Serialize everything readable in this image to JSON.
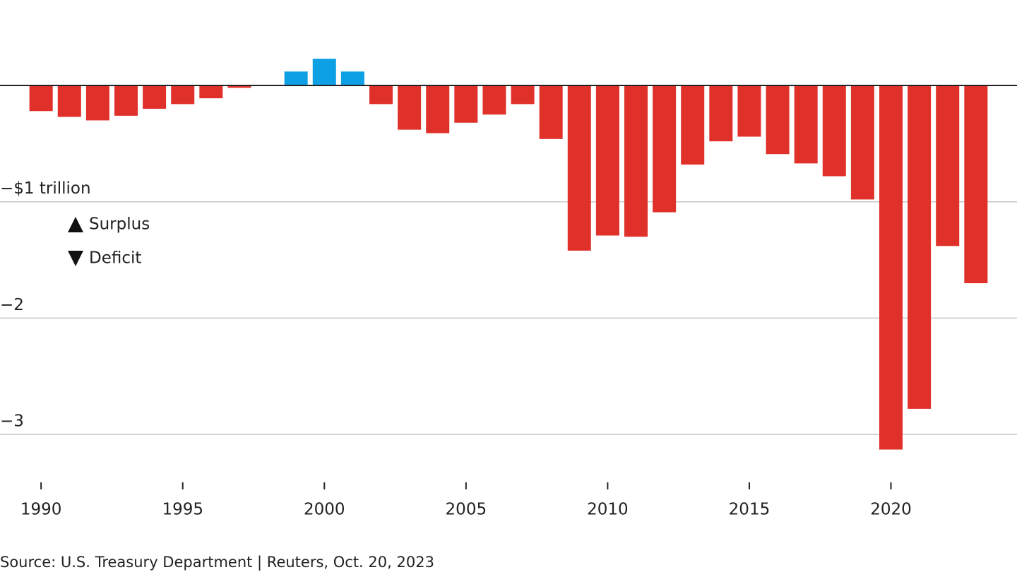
{
  "chart_data": {
    "type": "bar",
    "source": "Source: U.S. Treasury Department | Reuters, Oct. 20, 2023",
    "x": [
      1990,
      1991,
      1992,
      1993,
      1994,
      1995,
      1996,
      1997,
      1998,
      1999,
      2000,
      2001,
      2002,
      2003,
      2004,
      2005,
      2006,
      2007,
      2008,
      2009,
      2010,
      2011,
      2012,
      2013,
      2014,
      2015,
      2016,
      2017,
      2018,
      2019,
      2020,
      2021,
      2022,
      2023
    ],
    "values": [
      -0.22,
      -0.27,
      -0.3,
      -0.26,
      -0.2,
      -0.16,
      -0.11,
      -0.02,
      0,
      0.12,
      0.23,
      0.12,
      -0.16,
      -0.38,
      -0.41,
      -0.32,
      -0.25,
      -0.16,
      -0.46,
      -1.42,
      -1.29,
      -1.3,
      -1.09,
      -0.68,
      -0.48,
      -0.44,
      -0.59,
      -0.67,
      -0.78,
      -0.98,
      -3.13,
      -2.78,
      -1.38,
      -1.7
    ],
    "legend": [
      {
        "name": "Surplus",
        "color": "#0da0e5"
      },
      {
        "name": "Deficit",
        "color": "#e0302a"
      }
    ],
    "xlim": [
      1988.55,
      2024.45
    ],
    "xticks": [
      1990,
      1995,
      2000,
      2005,
      2010,
      2015,
      2020
    ],
    "ylim": [
      -3.394,
      0.735
    ],
    "yticks": [
      {
        "value": -1,
        "label": "−$1 trillion"
      },
      {
        "value": -2,
        "label": "−2"
      },
      {
        "value": -3,
        "label": "−3"
      }
    ],
    "grid": true
  }
}
